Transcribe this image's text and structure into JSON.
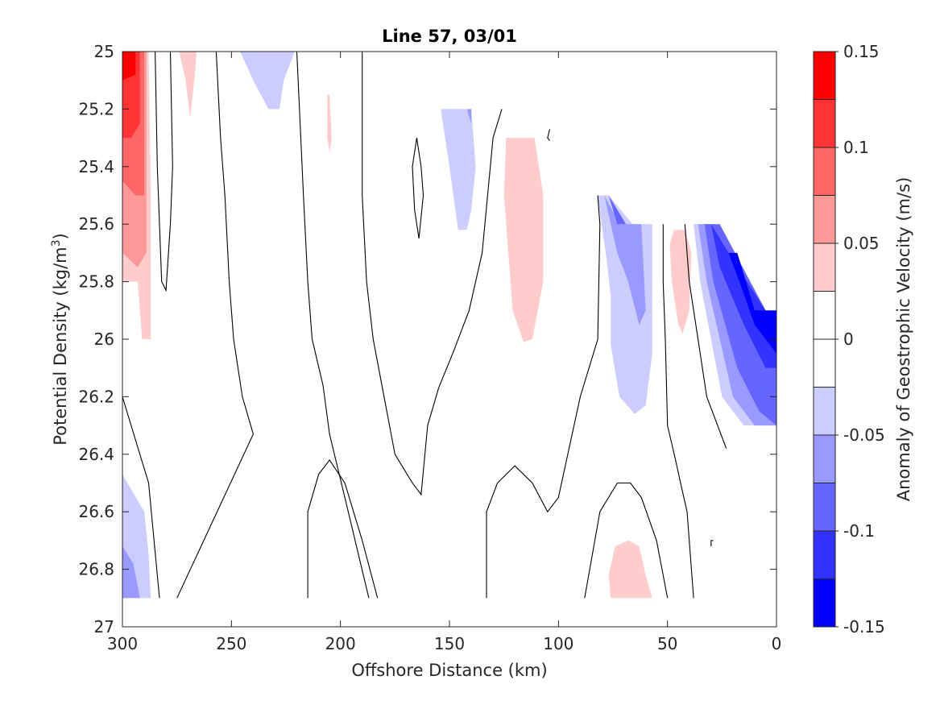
{
  "chart_data": {
    "type": "contour",
    "title": "Line 57, 03/01",
    "xlabel": "Offshore Distance (km)",
    "ylabel_main": "Potential Density (kg/m",
    "ylabel_sup": "3",
    "ylabel_close": ")",
    "colorbar_label": "Anomaly of Geostrophic Velocity (m/s)",
    "xlim": [
      300,
      0
    ],
    "x_reversed": true,
    "ylim": [
      25,
      27
    ],
    "y_reversed": true,
    "xticks": [
      300,
      250,
      200,
      150,
      100,
      50,
      0
    ],
    "xtick_labels": [
      "300",
      "250",
      "200",
      "150",
      "100",
      "50",
      "0"
    ],
    "yticks": [
      25,
      25.2,
      25.4,
      25.6,
      25.8,
      26,
      26.2,
      26.4,
      26.6,
      26.8,
      27
    ],
    "ytick_labels": [
      "25",
      "25.2",
      "25.4",
      "25.6",
      "25.8",
      "26",
      "26.2",
      "26.4",
      "26.6",
      "26.8",
      "27"
    ],
    "clim": [
      -0.15,
      0.15
    ],
    "colorbar_ticks": [
      0.15,
      0.1,
      0.05,
      0,
      -0.05,
      -0.1,
      -0.15
    ],
    "colorbar_tick_labels": [
      "0.15",
      "0.1",
      "0.05",
      "0",
      "-0.05",
      "-0.1",
      "-0.15"
    ],
    "colorbar_levels": [
      {
        "from": 0.125,
        "to": 0.15,
        "color": "#ff0000"
      },
      {
        "from": 0.1,
        "to": 0.125,
        "color": "#ff3333"
      },
      {
        "from": 0.075,
        "to": 0.1,
        "color": "#ff6666"
      },
      {
        "from": 0.05,
        "to": 0.075,
        "color": "#ff9999"
      },
      {
        "from": 0.025,
        "to": 0.05,
        "color": "#ffcccc"
      },
      {
        "from": 0.0,
        "to": 0.025,
        "color": "#ffffff"
      },
      {
        "from": -0.025,
        "to": 0.0,
        "color": "#ffffff"
      },
      {
        "from": -0.05,
        "to": -0.025,
        "color": "#ccccff"
      },
      {
        "from": -0.075,
        "to": -0.05,
        "color": "#9999ff"
      },
      {
        "from": -0.1,
        "to": -0.075,
        "color": "#6666ff"
      },
      {
        "from": -0.125,
        "to": -0.1,
        "color": "#3333ff"
      },
      {
        "from": -0.15,
        "to": -0.125,
        "color": "#0000ff"
      }
    ],
    "filled_regions": [
      {
        "name": "west-edge-pos-1",
        "color": "#ffcccc",
        "points": [
          [
            300,
            25
          ],
          [
            288,
            25
          ],
          [
            287,
            25.5
          ],
          [
            287,
            26
          ],
          [
            291,
            26
          ],
          [
            293,
            25.8
          ],
          [
            300,
            25.8
          ]
        ]
      },
      {
        "name": "west-edge-pos-2",
        "color": "#ff9999",
        "points": [
          [
            300,
            25
          ],
          [
            289,
            25
          ],
          [
            289,
            25.7
          ],
          [
            293,
            25.75
          ],
          [
            300,
            25.7
          ]
        ]
      },
      {
        "name": "west-edge-pos-3",
        "color": "#ff6666",
        "points": [
          [
            300,
            25
          ],
          [
            290,
            25
          ],
          [
            290,
            25.5
          ],
          [
            294,
            25.5
          ],
          [
            300,
            25.45
          ]
        ]
      },
      {
        "name": "west-edge-pos-4",
        "color": "#ff3333",
        "points": [
          [
            300,
            25
          ],
          [
            292,
            25
          ],
          [
            292,
            25.25
          ],
          [
            296,
            25.3
          ],
          [
            300,
            25.3
          ]
        ]
      },
      {
        "name": "west-edge-pos-5",
        "color": "#ff0000",
        "points": [
          [
            300,
            25
          ],
          [
            294,
            25
          ],
          [
            294,
            25.08
          ],
          [
            300,
            25.1
          ]
        ]
      },
      {
        "name": "pos-small-270",
        "color": "#ffcccc",
        "points": [
          [
            274,
            25
          ],
          [
            266,
            25
          ],
          [
            267,
            25.1
          ],
          [
            269,
            25.23
          ],
          [
            271,
            25.1
          ]
        ]
      },
      {
        "name": "neg-top-240",
        "color": "#ccccff",
        "points": [
          [
            246,
            25
          ],
          [
            221,
            25
          ],
          [
            226,
            25.1
          ],
          [
            228,
            25.2
          ],
          [
            233,
            25.2
          ],
          [
            240,
            25.1
          ]
        ]
      },
      {
        "name": "pos-sliver-205",
        "color": "#ffcccc",
        "points": [
          [
            206,
            25.15
          ],
          [
            205,
            25.15
          ],
          [
            204,
            25.3
          ],
          [
            205,
            25.35
          ],
          [
            206,
            25.3
          ]
        ]
      },
      {
        "name": "neg-mid-145",
        "color": "#ccccff",
        "points": [
          [
            154,
            25.2
          ],
          [
            140,
            25.2
          ],
          [
            138,
            25.4
          ],
          [
            140,
            25.55
          ],
          [
            142,
            25.62
          ],
          [
            146,
            25.62
          ],
          [
            150,
            25.4
          ]
        ]
      },
      {
        "name": "neg-mid-145-b",
        "color": "#9999ff",
        "points": [
          [
            142,
            25.2
          ],
          [
            140,
            25.2
          ],
          [
            140,
            25.25
          ]
        ]
      },
      {
        "name": "pos-mid-118",
        "color": "#ffcccc",
        "points": [
          [
            124,
            25.3
          ],
          [
            111,
            25.3
          ],
          [
            107,
            25.5
          ],
          [
            107,
            25.8
          ],
          [
            112,
            26
          ],
          [
            116,
            26.01
          ],
          [
            121,
            25.9
          ],
          [
            125,
            25.5
          ]
        ]
      },
      {
        "name": "neg-right-70",
        "color": "#ccccff",
        "points": [
          [
            82,
            25.5
          ],
          [
            77,
            25.5
          ],
          [
            66,
            25.6
          ],
          [
            57,
            25.6
          ],
          [
            57,
            26.05
          ],
          [
            60,
            26.23
          ],
          [
            65,
            26.26
          ],
          [
            72,
            26.2
          ],
          [
            76,
            26.02
          ],
          [
            76,
            25.85
          ],
          [
            78,
            25.72
          ]
        ]
      },
      {
        "name": "neg-right-70-b",
        "color": "#9999ff",
        "points": [
          [
            79,
            25.5
          ],
          [
            72,
            25.6
          ],
          [
            62,
            25.6
          ],
          [
            60,
            25.9
          ],
          [
            63,
            25.95
          ],
          [
            68,
            25.8
          ],
          [
            73,
            25.7
          ]
        ]
      },
      {
        "name": "neg-right-70-c",
        "color": "#6666ff",
        "points": [
          [
            77,
            25.5
          ],
          [
            73,
            25.6
          ],
          [
            69,
            25.6
          ],
          [
            73,
            25.55
          ]
        ]
      },
      {
        "name": "pos-right-45",
        "color": "#ffcccc",
        "points": [
          [
            47,
            25.62
          ],
          [
            42,
            25.62
          ],
          [
            39,
            25.7
          ],
          [
            40,
            25.9
          ],
          [
            43,
            25.98
          ],
          [
            45,
            25.95
          ],
          [
            48,
            25.8
          ],
          [
            49,
            25.67
          ]
        ]
      },
      {
        "name": "neg-east-1",
        "color": "#ccccff",
        "points": [
          [
            38,
            25.6
          ],
          [
            30,
            25.6
          ],
          [
            5,
            25.9
          ],
          [
            0,
            25.95
          ],
          [
            0,
            26.3
          ],
          [
            15,
            26.3
          ],
          [
            25,
            26.2
          ],
          [
            35,
            25.8
          ]
        ]
      },
      {
        "name": "neg-east-2",
        "color": "#9999ff",
        "points": [
          [
            36,
            25.6
          ],
          [
            28,
            25.6
          ],
          [
            5,
            25.9
          ],
          [
            0,
            25.95
          ],
          [
            0,
            26.3
          ],
          [
            10,
            26.3
          ],
          [
            20,
            26.2
          ],
          [
            32,
            25.8
          ]
        ]
      },
      {
        "name": "neg-east-3",
        "color": "#6666ff",
        "points": [
          [
            33,
            25.6
          ],
          [
            26,
            25.6
          ],
          [
            5,
            25.9
          ],
          [
            0,
            25.95
          ],
          [
            0,
            26.3
          ],
          [
            8,
            26.25
          ],
          [
            18,
            26.1
          ],
          [
            29,
            25.8
          ]
        ]
      },
      {
        "name": "neg-east-4",
        "color": "#3333ff",
        "points": [
          [
            30,
            25.6
          ],
          [
            22,
            25.7
          ],
          [
            5,
            25.9
          ],
          [
            0,
            25.95
          ],
          [
            0,
            26.1
          ],
          [
            5,
            26.1
          ],
          [
            15,
            25.95
          ],
          [
            26,
            25.75
          ]
        ]
      },
      {
        "name": "neg-east-5",
        "color": "#0000ff",
        "points": [
          [
            22,
            25.7
          ],
          [
            18,
            25.7
          ],
          [
            10,
            25.9
          ],
          [
            0,
            25.9
          ],
          [
            0,
            26.05
          ],
          [
            5,
            26.0
          ],
          [
            10,
            25.95
          ],
          [
            17,
            25.8
          ]
        ]
      },
      {
        "name": "neg-bottom-west",
        "color": "#ccccff",
        "points": [
          [
            300,
            26.47
          ],
          [
            290,
            26.6
          ],
          [
            288,
            26.75
          ],
          [
            287,
            26.9
          ],
          [
            300,
            26.9
          ]
        ]
      },
      {
        "name": "neg-bottom-west-b",
        "color": "#9999ff",
        "points": [
          [
            300,
            26.72
          ],
          [
            295,
            26.78
          ],
          [
            292,
            26.9
          ],
          [
            300,
            26.9
          ]
        ]
      },
      {
        "name": "pos-bottom-70",
        "color": "#ffcccc",
        "points": [
          [
            68,
            26.7
          ],
          [
            74,
            26.72
          ],
          [
            77,
            26.82
          ],
          [
            76,
            26.9
          ],
          [
            57,
            26.9
          ],
          [
            60,
            26.82
          ],
          [
            63,
            26.72
          ]
        ]
      }
    ],
    "zero_contours": [
      {
        "name": "zero-contour-1",
        "points": [
          [
            285,
            25
          ],
          [
            284,
            25.4
          ],
          [
            282,
            25.8
          ],
          [
            280,
            25.83
          ],
          [
            278,
            25.6
          ],
          [
            277,
            25.4
          ],
          [
            278,
            25
          ]
        ]
      },
      {
        "name": "zero-contour-2",
        "points": [
          [
            257,
            25
          ],
          [
            255,
            25.3
          ],
          [
            253,
            25.5
          ],
          [
            251,
            25.8
          ],
          [
            249,
            26
          ],
          [
            245,
            26.2
          ],
          [
            240,
            26.33
          ],
          [
            275,
            26.9
          ]
        ]
      },
      {
        "name": "zero-contour-3",
        "points": [
          [
            300,
            26.2
          ],
          [
            296,
            26.3
          ],
          [
            288,
            26.5
          ],
          [
            283,
            26.9
          ]
        ]
      },
      {
        "name": "zero-contour-4",
        "points": [
          [
            220,
            25.0
          ],
          [
            217,
            25.5
          ],
          [
            215,
            25.8
          ],
          [
            213,
            26
          ],
          [
            208,
            26.16
          ],
          [
            205,
            26.33
          ],
          [
            198,
            26.55
          ],
          [
            187,
            26.9
          ]
        ]
      },
      {
        "name": "zero-contour-5",
        "points": [
          [
            190,
            25
          ],
          [
            190,
            25.5
          ],
          [
            188,
            25.8
          ],
          [
            185,
            26
          ],
          [
            180,
            26.2
          ],
          [
            175,
            26.4
          ],
          [
            167,
            26.5
          ],
          [
            163,
            26.54
          ],
          [
            160,
            26.3
          ],
          [
            155,
            26.17
          ],
          [
            148,
            26.04
          ],
          [
            141,
            25.9
          ],
          [
            135,
            25.7
          ],
          [
            130,
            25.3
          ],
          [
            126,
            25.2
          ]
        ]
      },
      {
        "name": "zero-contour-6",
        "points": [
          [
            165,
            25.3
          ],
          [
            167,
            25.4
          ],
          [
            166,
            25.55
          ],
          [
            164,
            25.65
          ],
          [
            162,
            25.5
          ],
          [
            163,
            25.4
          ],
          [
            165,
            25.3
          ]
        ]
      },
      {
        "name": "zero-contour-7",
        "points": [
          [
            215,
            26.9
          ],
          [
            215,
            26.6
          ],
          [
            210,
            26.47
          ],
          [
            205,
            26.42
          ],
          [
            198,
            26.5
          ],
          [
            190,
            26.7
          ],
          [
            183,
            26.9
          ]
        ]
      },
      {
        "name": "zero-contour-8",
        "points": [
          [
            133,
            26.9
          ],
          [
            133,
            26.6
          ],
          [
            128,
            26.5
          ],
          [
            120,
            26.44
          ],
          [
            112,
            26.5
          ],
          [
            105,
            26.6
          ],
          [
            100,
            26.55
          ],
          [
            90,
            26.2
          ],
          [
            82,
            26.0
          ],
          [
            81,
            25.6
          ],
          [
            82,
            25.5
          ]
        ]
      },
      {
        "name": "zero-contour-9",
        "points": [
          [
            88,
            26.9
          ],
          [
            81,
            26.6
          ],
          [
            73,
            26.5
          ],
          [
            67,
            26.5
          ],
          [
            62,
            26.55
          ],
          [
            55,
            26.7
          ],
          [
            50,
            26.9
          ]
        ]
      },
      {
        "name": "zero-contour-10",
        "points": [
          [
            52,
            25.6
          ],
          [
            52,
            25.8
          ],
          [
            51,
            26.0
          ],
          [
            50,
            26.3
          ],
          [
            46,
            26.43
          ],
          [
            44,
            26.5
          ],
          [
            41,
            26.6
          ],
          [
            38,
            26.9
          ]
        ]
      },
      {
        "name": "zero-contour-11",
        "points": [
          [
            42,
            25.6
          ],
          [
            40,
            25.8
          ],
          [
            36,
            26.0
          ],
          [
            32,
            26.2
          ],
          [
            25,
            26.34
          ],
          [
            23,
            26.38
          ]
        ]
      },
      {
        "name": "zero-contour-12",
        "points": [
          [
            104,
            25.27
          ],
          [
            105,
            25.3
          ],
          [
            104,
            25.31
          ]
        ]
      },
      {
        "name": "zero-contour-13",
        "points": [
          [
            30,
            26.72
          ],
          [
            30,
            26.7
          ],
          [
            29,
            26.7
          ]
        ]
      }
    ]
  }
}
